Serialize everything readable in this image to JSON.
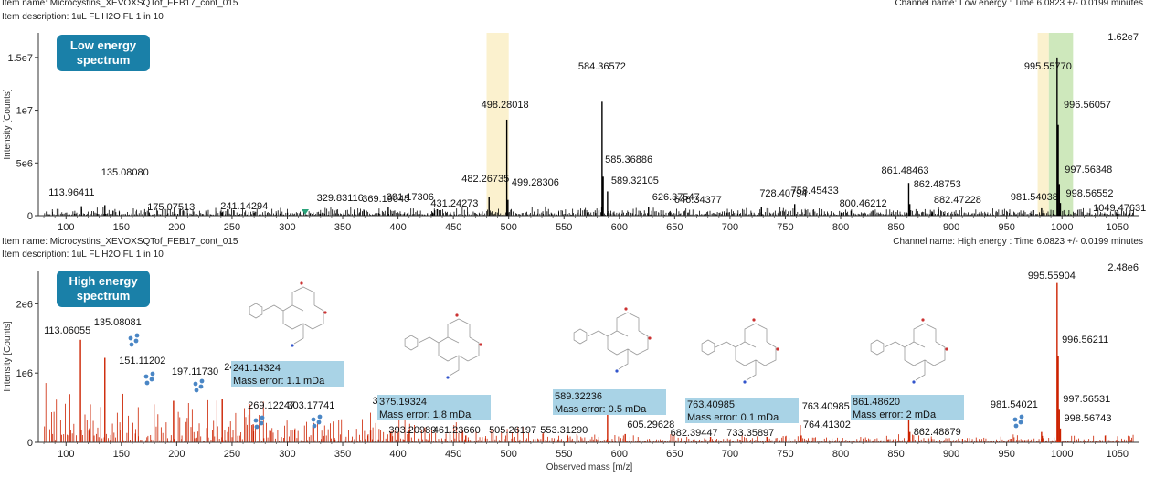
{
  "x_axis_label": "Observed mass [m/z]",
  "colors": {
    "low": "#000000",
    "high": "#cc2200",
    "badge": "#1a80a8",
    "annotation_box": "#a9d3e6",
    "highlight_green": "#c9e6b5",
    "highlight_yellow": "#fbf0c9"
  },
  "panels": [
    {
      "id": "low",
      "item_name": "Item name: Microcystins_XEVOXSQTof_FEB17_cont_015",
      "item_description": "Item description: 1uL FL H2O FL 1 in 10",
      "channel": "Channel name: Low energy : Time 6.0823 +/- 0.0199 minutes",
      "badge": [
        "Low energy",
        "spectrum"
      ],
      "max_label": "1.62e7",
      "ylabel": "Intensity [Counts]"
    },
    {
      "id": "high",
      "item_name": "Item name: Microcystins_XEVOXSQTof_FEB17_cont_015",
      "item_description": "Item description: 1uL FL H2O FL 1 in 10",
      "channel": "Channel name: High energy : Time 6.0823 +/- 0.0199 minutes",
      "badge": [
        "High energy",
        "spectrum"
      ],
      "max_label": "2.48e6",
      "ylabel": "Intensity [Counts]"
    }
  ],
  "chart_data": [
    {
      "type": "bar",
      "title": "Low energy spectrum",
      "xlabel": "",
      "ylabel": "Intensity [Counts]",
      "xlim": [
        75,
        1070
      ],
      "ylim": [
        0,
        16200000
      ],
      "x_ticks": [
        100,
        150,
        200,
        250,
        300,
        350,
        400,
        450,
        500,
        550,
        600,
        650,
        700,
        750,
        800,
        850,
        900,
        950,
        1000,
        1050
      ],
      "y_ticks": [
        {
          "v": 0,
          "label": "0"
        },
        {
          "v": 5000000,
          "label": "5e6"
        },
        {
          "v": 10000000,
          "label": "1e7"
        },
        {
          "v": 15000000,
          "label": "1.5e7"
        }
      ],
      "highlights": [
        {
          "from": 988,
          "to": 1010,
          "color": "green"
        },
        {
          "from": 480,
          "to": 500,
          "color": "yellow"
        },
        {
          "from": 978,
          "to": 988,
          "color": "yellow"
        }
      ],
      "peaks": [
        {
          "mz": 113.96411,
          "intensity": 900000,
          "label": "113.96411"
        },
        {
          "mz": 135.0808,
          "intensity": 1000000,
          "label": "135.08080"
        },
        {
          "mz": 175.07513,
          "intensity": 300000,
          "label": "175.07513"
        },
        {
          "mz": 241.14294,
          "intensity": 300000,
          "label": "241.14294"
        },
        {
          "mz": 329.83116,
          "intensity": 200000,
          "label": "329.83116"
        },
        {
          "mz": 369.19045,
          "intensity": 500000,
          "label": "369.19045"
        },
        {
          "mz": 391.17306,
          "intensity": 800000,
          "label": "391.17306"
        },
        {
          "mz": 431.24273,
          "intensity": 300000,
          "label": "431.24273"
        },
        {
          "mz": 482.26735,
          "intensity": 1800000,
          "label": "482.26735"
        },
        {
          "mz": 498.28018,
          "intensity": 9100000,
          "label": "498.28018"
        },
        {
          "mz": 499.28306,
          "intensity": 1500000,
          "label": "499.28306"
        },
        {
          "mz": 584.36572,
          "intensity": 10800000,
          "label": "584.36572"
        },
        {
          "mz": 585.36886,
          "intensity": 3700000,
          "label": "585.36886"
        },
        {
          "mz": 589.32105,
          "intensity": 2300000,
          "label": "589.32105"
        },
        {
          "mz": 626.37547,
          "intensity": 800000,
          "label": "626.37547"
        },
        {
          "mz": 646.34377,
          "intensity": 300000,
          "label": "646.34377"
        },
        {
          "mz": 728.40794,
          "intensity": 800000,
          "label": "728.40794"
        },
        {
          "mz": 758.45433,
          "intensity": 1100000,
          "label": "758.45433"
        },
        {
          "mz": 800.46212,
          "intensity": 300000,
          "label": "800.46212"
        },
        {
          "mz": 861.48463,
          "intensity": 3100000,
          "label": "861.48463"
        },
        {
          "mz": 862.48753,
          "intensity": 1100000,
          "label": "862.48753"
        },
        {
          "mz": 882.47228,
          "intensity": 400000,
          "label": "882.47228"
        },
        {
          "mz": 981.54038,
          "intensity": 700000,
          "label": "981.54038"
        },
        {
          "mz": 995.5577,
          "intensity": 15000000,
          "label": "995.55770"
        },
        {
          "mz": 996.56057,
          "intensity": 8600000,
          "label": "996.56057"
        },
        {
          "mz": 997.56348,
          "intensity": 3000000,
          "label": "997.56348"
        },
        {
          "mz": 998.56552,
          "intensity": 1200000,
          "label": "998.56552"
        },
        {
          "mz": 1049.47631,
          "intensity": 200000,
          "label": "1049.47631"
        }
      ]
    },
    {
      "type": "bar",
      "title": "High energy spectrum",
      "xlabel": "Observed mass [m/z]",
      "ylabel": "Intensity [Counts]",
      "xlim": [
        75,
        1070
      ],
      "ylim": [
        0,
        2480000
      ],
      "x_ticks": [
        100,
        150,
        200,
        250,
        300,
        350,
        400,
        450,
        500,
        550,
        600,
        650,
        700,
        750,
        800,
        850,
        900,
        950,
        1000,
        1050
      ],
      "y_ticks": [
        {
          "v": 0,
          "label": "0"
        },
        {
          "v": 1000000,
          "label": "1e6"
        },
        {
          "v": 2000000,
          "label": "2e6"
        }
      ],
      "peaks": [
        {
          "mz": 113.06055,
          "intensity": 1480000,
          "label": "113.06055"
        },
        {
          "mz": 135.08081,
          "intensity": 1220000,
          "label": "135.08081"
        },
        {
          "mz": 151.11202,
          "intensity": 700000,
          "label": "151.11202"
        },
        {
          "mz": 197.1173,
          "intensity": 600000,
          "label": "197.11730"
        },
        {
          "mz": 241.14324,
          "intensity": 620000,
          "label": "241.14324"
        },
        {
          "mz": 269.12247,
          "intensity": 260000,
          "label": "269.12247"
        },
        {
          "mz": 303.17741,
          "intensity": 180000,
          "label": "303.17741"
        },
        {
          "mz": 375.19324,
          "intensity": 170000,
          "label": "375.19324"
        },
        {
          "mz": 393.20989,
          "intensity": 150000,
          "label": "393.20989"
        },
        {
          "mz": 461.2366,
          "intensity": 100000,
          "label": "461.23660"
        },
        {
          "mz": 505.26197,
          "intensity": 80000,
          "label": "505.26197"
        },
        {
          "mz": 553.3129,
          "intensity": 100000,
          "label": "553.31290"
        },
        {
          "mz": 589.32236,
          "intensity": 420000,
          "label": "589.32236"
        },
        {
          "mz": 605.29628,
          "intensity": 120000,
          "label": "605.29628"
        },
        {
          "mz": 682.39447,
          "intensity": 80000,
          "label": "682.39447"
        },
        {
          "mz": 733.35897,
          "intensity": 80000,
          "label": "733.35897"
        },
        {
          "mz": 763.40985,
          "intensity": 250000,
          "label": "763.40985"
        },
        {
          "mz": 764.41302,
          "intensity": 100000,
          "label": "764.41302"
        },
        {
          "mz": 861.4862,
          "intensity": 380000,
          "label": "861.48620"
        },
        {
          "mz": 862.48879,
          "intensity": 150000,
          "label": "862.48879"
        },
        {
          "mz": 981.54021,
          "intensity": 150000,
          "label": "981.54021"
        },
        {
          "mz": 995.55904,
          "intensity": 2300000,
          "label": "995.55904"
        },
        {
          "mz": 996.56211,
          "intensity": 1250000,
          "label": "996.56211"
        },
        {
          "mz": 997.56531,
          "intensity": 470000,
          "label": "997.56531"
        },
        {
          "mz": 998.56743,
          "intensity": 200000,
          "label": "998.56743"
        }
      ],
      "annotations": [
        {
          "mz": "241.14324",
          "error": "Mass error: 1.1 mDa"
        },
        {
          "mz": "375.19324",
          "error": "Mass error: 1.8 mDa"
        },
        {
          "mz": "589.32236",
          "error": "Mass error: 0.5 mDa"
        },
        {
          "mz": "763.40985",
          "error": "Mass error: 0.1 mDa"
        },
        {
          "mz": "861.48620",
          "error": "Mass error: 2 mDa"
        }
      ]
    }
  ]
}
